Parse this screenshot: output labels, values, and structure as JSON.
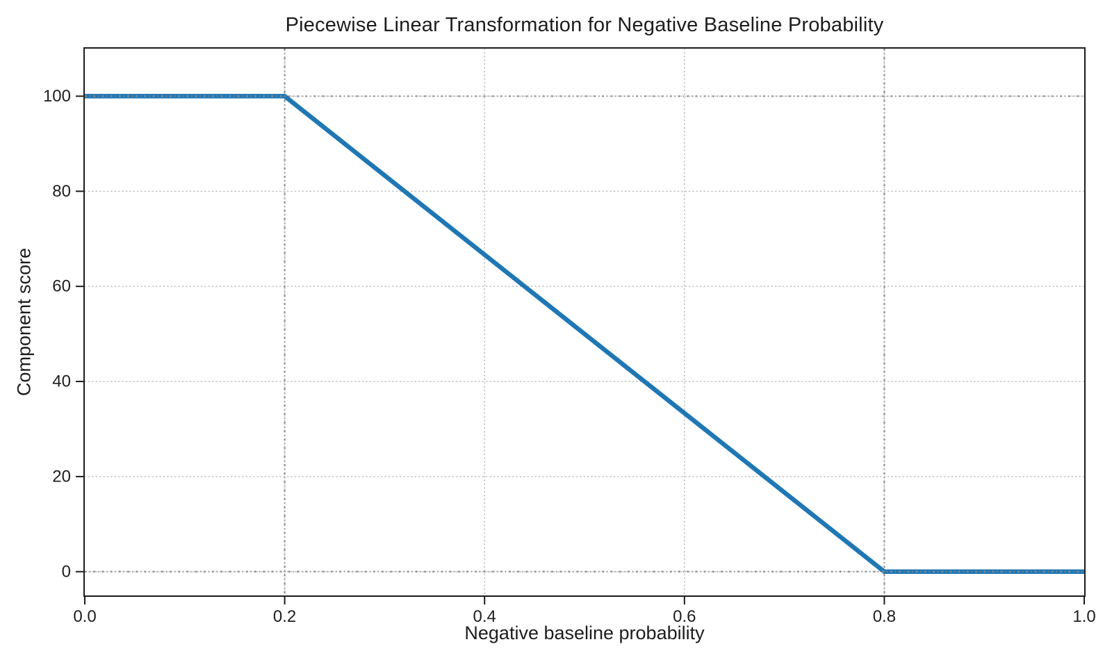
{
  "chart_data": {
    "type": "line",
    "title": "Piecewise Linear Transformation for Negative Baseline Probability",
    "xlabel": "Negative baseline probability",
    "ylabel": "Component score",
    "xlim": [
      0.0,
      1.0
    ],
    "ylim": [
      -5,
      110
    ],
    "x_ticks": [
      0.0,
      0.2,
      0.4,
      0.6,
      0.8,
      1.0
    ],
    "x_tick_labels": [
      "0.0",
      "0.2",
      "0.4",
      "0.6",
      "0.8",
      "1.0"
    ],
    "y_ticks": [
      0,
      20,
      40,
      60,
      80,
      100
    ],
    "y_tick_labels": [
      "0",
      "20",
      "40",
      "60",
      "80",
      "100"
    ],
    "grid": true,
    "grid_style": "dotted",
    "legend": null,
    "series": [
      {
        "name": "component-score-line",
        "color": "#1f77b4",
        "linewidth": 6.5,
        "points": [
          [
            0.0,
            100
          ],
          [
            0.2,
            100
          ],
          [
            0.8,
            0
          ],
          [
            1.0,
            0
          ]
        ]
      }
    ],
    "reference_lines": {
      "x": [
        0.2,
        0.8
      ],
      "y": [
        0,
        100
      ],
      "color": "#8c8c8c",
      "style": "dotted"
    },
    "colors": {
      "grid_minor": "#c6c6c6",
      "grid_reference": "#8c8c8c",
      "spine": "#1c1c1c",
      "tick_text": "#1f1f1f",
      "background": "#ffffff"
    }
  }
}
